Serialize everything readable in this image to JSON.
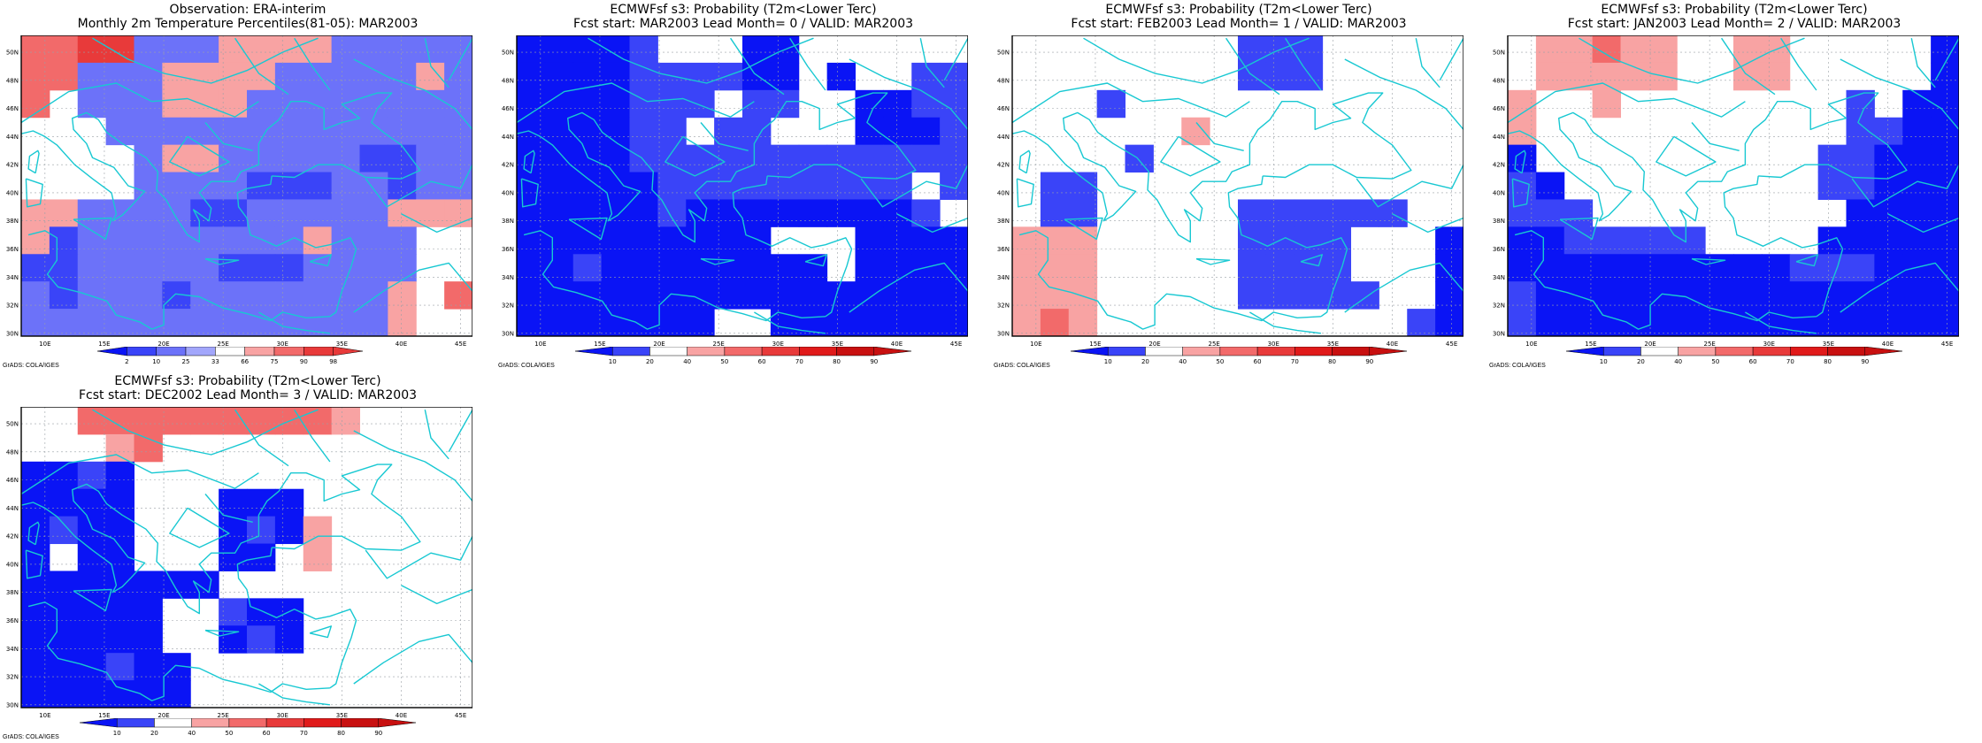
{
  "palette": {
    "blue_dark": "#0a14f5",
    "blue_mid": "#3a44f8",
    "blue_light": "#6c72f9",
    "blue_pale": "#a2a6fb",
    "pink_pale": "#f8a3a3",
    "pink_mid": "#f26a6a",
    "red": "#e83a3a",
    "coast": "#18c8d2",
    "grid": "#9aa0a6"
  },
  "lon_ticks": [
    "10E",
    "15E",
    "20E",
    "25E",
    "30E",
    "35E",
    "40E",
    "45E"
  ],
  "lat_ticks": [
    "50N",
    "48N",
    "46N",
    "44N",
    "42N",
    "40N",
    "38N",
    "36N",
    "34N",
    "32N",
    "30N"
  ],
  "footer": "GrADS: COLA/IGES",
  "panels": [
    {
      "title1": "Observation: ERA-interim",
      "title2": "Monthly 2m Temperature Percentiles(81-05): MAR2003",
      "legend_labels": [
        "2",
        "10",
        "25",
        "33",
        "66",
        "75",
        "90",
        "98"
      ],
      "legend_colors": [
        "#0a14f5",
        "#3a44f8",
        "#6c72f9",
        "#a2a6fb",
        "#ffffff",
        "#f8a3a3",
        "#f26a6a",
        "#e83a3a"
      ],
      "grid": [
        "6622LLLPPPPLLLLL",
        "66LLLPPPPLLLLLPL",
        "6WLLLPPPLLLLLLLL",
        "WWWLLLLLLLLLLLLL",
        "WWWWLPPLLLLLMMLL",
        "WWWWLLLLMMMLLMLL",
        "PPLLLLMMLLLLLPPP",
        "PMLLLLLLLLPLLLWW",
        "MMLLLLLMMMLLLLWW",
        "LMLLLMLLLLLLLPW6",
        "LLLLLLLLLLLLLPWW"
      ]
    },
    {
      "title1": "ECMWFsf s3: Probability (T2m<Lower Terc)",
      "title2": "Fcst start: MAR2003  Lead Month= 0 / VALID: MAR2003",
      "legend_labels": [
        "10",
        "20",
        "40",
        "50",
        "60",
        "70",
        "80",
        "90"
      ],
      "legend_colors": [
        "#0a14f5",
        "#3a44f8",
        "#ffffff",
        "#f8a3a3",
        "#f26a6a",
        "#e83a3a",
        "#e01a1a",
        "#c81010"
      ],
      "grid": [
        "DDDDMWWWDDWWWWWW",
        "DDDDMMMMDDWDWWMM",
        "DDDDMMMWMMWWDDMM",
        "DDDDMMWMMWWWDDDM",
        "DDDDMMMMMMMMMMMM",
        "DDDDDMMMMMMMMMWM",
        "DDDDDMDDDDDDDDMW",
        "DDDDDDDDDWWWDDDD",
        "DDMDDDDDDDDWDDDD",
        "DDDDDDDDDDDDDDDD",
        "DDDDDDDWWDDDDDDD"
      ]
    },
    {
      "title1": "ECMWFsf s3: Probability (T2m<Lower Terc)",
      "title2": "Fcst start: FEB2003  Lead Month= 1 / VALID: MAR2003",
      "legend_labels": [
        "10",
        "20",
        "40",
        "50",
        "60",
        "70",
        "80",
        "90"
      ],
      "legend_colors": [
        "#0a14f5",
        "#3a44f8",
        "#ffffff",
        "#f8a3a3",
        "#f26a6a",
        "#e83a3a",
        "#e01a1a",
        "#c81010"
      ],
      "grid": [
        "WWWWWWWWMMMWWWWW",
        "WWWWWWWWMMMWWWWW",
        "WWWMWWWWWWWWWWWW",
        "WWWWWWPWWWWWWWWW",
        "WWWWMWWWWWWWWWWW",
        "WMMWWWWWWWWWWWWW",
        "WMMWWWWWMMMMMMWW",
        "PPPWWWWWMMMMWWWD",
        "PPPWWWWWMMMMWWWD",
        "PPPWWWWWMMMMMWWD",
        "P6PWWWWWWWWWWWMD"
      ]
    },
    {
      "title1": "ECMWFsf s3: Probability (T2m<Lower Terc)",
      "title2": "Fcst start: JAN2003  Lead Month= 2 / VALID: MAR2003",
      "legend_labels": [
        "10",
        "20",
        "40",
        "50",
        "60",
        "70",
        "80",
        "90"
      ],
      "legend_colors": [
        "#0a14f5",
        "#3a44f8",
        "#ffffff",
        "#f8a3a3",
        "#f26a6a",
        "#e83a3a",
        "#e01a1a",
        "#c81010"
      ],
      "grid": [
        "WPP6PPWWPPWWWWWD",
        "WPPPPPWWPPWWWWWD",
        "PWWPWWWWWWWWMWDD",
        "PWWWWWWWWWWWMMDD",
        "DWWWWWWWWWWMMDDD",
        "MDWWWWWWWWWMMDDD",
        "MMMWWWWWWWWWDDDD",
        "DDMMMMMWWWWDDDDD",
        "DDDDDDDDDDMMMDDD",
        "MDDDDDDDDDDDDDDD",
        "MDDDDDDDDDDDDDDD"
      ]
    },
    {
      "title1": "ECMWFsf s3: Probability (T2m<Lower Terc)",
      "title2": "Fcst start: DEC2002  Lead Month= 3 / VALID: MAR2003",
      "legend_labels": [
        "10",
        "20",
        "40",
        "50",
        "60",
        "70",
        "80",
        "90"
      ],
      "legend_colors": [
        "#0a14f5",
        "#3a44f8",
        "#ffffff",
        "#f8a3a3",
        "#f26a6a",
        "#e83a3a",
        "#e01a1a",
        "#c81010"
      ],
      "grid": [
        "WW666666666PWWWW",
        "WWWP6WWWWWWWWWWW",
        "DDMDWWWWWWWWWWWW",
        "DDDDWWWDDDWWWWWW",
        "DMDDWWWDMDPWWWWW",
        "DWDDWWWDDWPWWWWW",
        "DDDDDDDWWWWWWWWW",
        "DDDDDWWMDDWWWWWW",
        "DDDDDWWDMDWWWWWW",
        "DDDMDDWWWWWWWWWW",
        "DDDDDDWWWWWWWWWW"
      ]
    }
  ]
}
